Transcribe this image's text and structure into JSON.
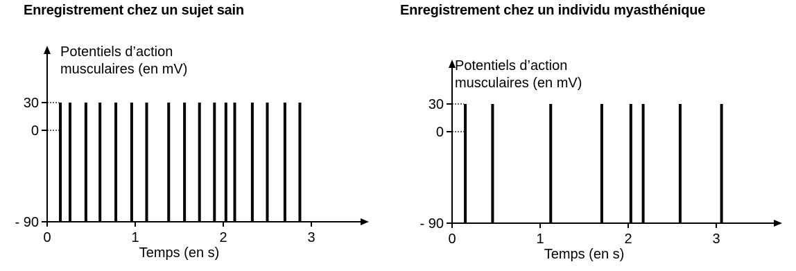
{
  "chart_data": [
    {
      "type": "line",
      "title": "Enregistrement chez un sujet sain",
      "ylabel_lines": [
        "Potentiels d’action",
        "musculaires (en mV)"
      ],
      "xlabel": "Temps (en s)",
      "x_ticks": [
        {
          "value": 0,
          "label": "0"
        },
        {
          "value": 1,
          "label": "1"
        },
        {
          "value": 2,
          "label": "2"
        },
        {
          "value": 3,
          "label": "3"
        }
      ],
      "y_ticks": [
        {
          "value": 30,
          "label": "30"
        },
        {
          "value": 0,
          "label": "0"
        },
        {
          "value": -90,
          "label": "- 90"
        }
      ],
      "xlim": [
        0,
        3.45
      ],
      "ylim": [
        -90,
        70
      ],
      "baseline": -90,
      "spike_peak": 30,
      "spike_times": [
        0.15,
        0.26,
        0.44,
        0.6,
        0.78,
        0.96,
        1.13,
        1.38,
        1.56,
        1.73,
        1.9,
        2.03,
        2.13,
        2.33,
        2.5,
        2.7,
        2.87
      ]
    },
    {
      "type": "line",
      "title": "Enregistrement chez un individu myasthénique",
      "ylabel_lines": [
        "Potentiels d’action",
        "musculaires (en mV)"
      ],
      "xlabel": "Temps (en s)",
      "x_ticks": [
        {
          "value": 0,
          "label": "0"
        },
        {
          "value": 1,
          "label": "1"
        },
        {
          "value": 2,
          "label": "2"
        },
        {
          "value": 3,
          "label": "3"
        }
      ],
      "y_ticks": [
        {
          "value": 30,
          "label": "30"
        },
        {
          "value": 0,
          "label": "0"
        },
        {
          "value": -90,
          "label": "- 90"
        }
      ],
      "xlim": [
        0,
        3.45
      ],
      "ylim": [
        -90,
        70
      ],
      "baseline": -90,
      "spike_peak": 30,
      "spike_times": [
        0.15,
        0.46,
        1.12,
        1.7,
        2.03,
        2.17,
        2.59,
        3.06
      ]
    }
  ]
}
